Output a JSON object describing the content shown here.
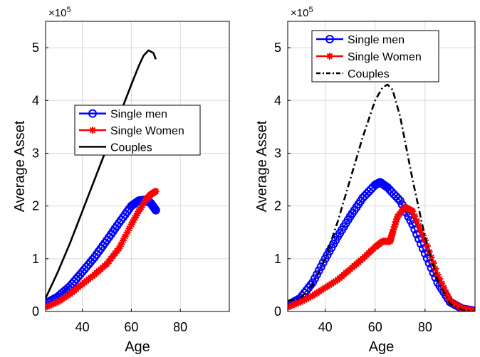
{
  "chart_data": [
    {
      "type": "line",
      "xlabel": "Age",
      "ylabel": "Average Asset",
      "y_exponent_label": "×10",
      "y_exponent_power": "5",
      "xlim": [
        25,
        100
      ],
      "ylim": [
        0,
        550000
      ],
      "xticks": [
        40,
        60,
        80
      ],
      "xtick_labels": [
        "40",
        "60",
        "80"
      ],
      "yticks": [
        0,
        100000,
        200000,
        300000,
        400000,
        500000
      ],
      "ytick_labels": [
        "0",
        "1",
        "2",
        "3",
        "4",
        "5"
      ],
      "grid": true,
      "legend_position": "center",
      "series": [
        {
          "name": "Single men",
          "color": "#0000ff",
          "marker": "circle",
          "line_style": "solid",
          "x": [
            25,
            30,
            35,
            40,
            45,
            50,
            55,
            60,
            63,
            66,
            68,
            70
          ],
          "y": [
            15000,
            28000,
            48000,
            75000,
            103000,
            135000,
            168000,
            200000,
            210000,
            212000,
            205000,
            192000
          ]
        },
        {
          "name": "Single Women",
          "color": "#ff0000",
          "marker": "asterisk",
          "line_style": "solid",
          "x": [
            25,
            30,
            35,
            40,
            45,
            50,
            55,
            60,
            63,
            66,
            68,
            70
          ],
          "y": [
            8000,
            18000,
            33000,
            52000,
            70000,
            90000,
            120000,
            165000,
            190000,
            212000,
            222000,
            228000
          ]
        },
        {
          "name": "Couples",
          "color": "#000000",
          "marker": "none",
          "line_style": "solid",
          "x": [
            25,
            30,
            35,
            40,
            45,
            50,
            55,
            60,
            63,
            65,
            67,
            69,
            70
          ],
          "y": [
            25000,
            75000,
            130000,
            190000,
            250000,
            310000,
            370000,
            430000,
            465000,
            485000,
            495000,
            490000,
            478000
          ]
        }
      ]
    },
    {
      "type": "line",
      "xlabel": "Age",
      "ylabel": "Average Asset",
      "y_exponent_label": "×10",
      "y_exponent_power": "5",
      "xlim": [
        25,
        100
      ],
      "ylim": [
        0,
        550000
      ],
      "xticks": [
        40,
        60,
        80
      ],
      "xtick_labels": [
        "40",
        "60",
        "80"
      ],
      "yticks": [
        0,
        100000,
        200000,
        300000,
        400000,
        500000
      ],
      "ytick_labels": [
        "0",
        "1",
        "2",
        "3",
        "4",
        "5"
      ],
      "grid": true,
      "legend_position": "top",
      "series": [
        {
          "name": "Single men",
          "color": "#0000ff",
          "marker": "circle",
          "line_style": "solid",
          "x": [
            25,
            30,
            35,
            40,
            45,
            50,
            55,
            60,
            62,
            65,
            70,
            75,
            80,
            85,
            90,
            95,
            99
          ],
          "y": [
            12000,
            25000,
            55000,
            100000,
            142000,
            180000,
            215000,
            240000,
            245000,
            235000,
            210000,
            165000,
            110000,
            55000,
            18000,
            5000,
            2000
          ]
        },
        {
          "name": "Single Women",
          "color": "#ff0000",
          "marker": "asterisk",
          "line_style": "solid",
          "x": [
            25,
            30,
            35,
            40,
            45,
            50,
            55,
            60,
            63,
            66,
            67,
            69,
            72,
            75,
            80,
            85,
            90,
            95,
            99
          ],
          "y": [
            8000,
            18000,
            30000,
            45000,
            60000,
            80000,
            100000,
            122000,
            133000,
            133000,
            150000,
            180000,
            198000,
            190000,
            135000,
            70000,
            20000,
            5000,
            2000
          ]
        },
        {
          "name": "Couples",
          "color": "#000000",
          "marker": "none",
          "line_style": "dashdot",
          "x": [
            25,
            30,
            35,
            40,
            45,
            50,
            55,
            60,
            63,
            65,
            67,
            70,
            75,
            80,
            85,
            90,
            95,
            99
          ],
          "y": [
            20000,
            25000,
            50000,
            100000,
            170000,
            250000,
            330000,
            400000,
            425000,
            430000,
            420000,
            370000,
            250000,
            140000,
            60000,
            15000,
            3000,
            1000
          ]
        }
      ]
    }
  ]
}
